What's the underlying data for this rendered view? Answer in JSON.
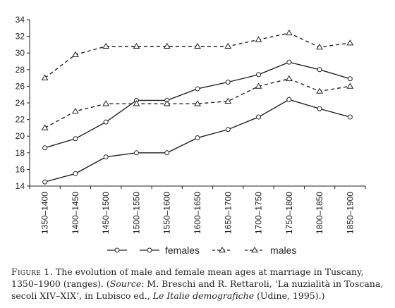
{
  "chart_data": {
    "type": "line",
    "categories": [
      "1350–1400",
      "1400–1450",
      "1450–1500",
      "1500–1550",
      "1550–1600",
      "1600–1650",
      "1650–1700",
      "1700–1750",
      "1750–1800",
      "1800–1850",
      "1850–1900"
    ],
    "ylim": [
      14,
      34
    ],
    "yticks": [
      14,
      16,
      18,
      20,
      22,
      24,
      26,
      28,
      30,
      32,
      34
    ],
    "grid": false,
    "legend_placement": "bottom",
    "series": [
      {
        "group": "females",
        "marker": "circle",
        "line": "solid",
        "values": [
          18.6,
          19.7,
          21.7,
          24.3,
          24.3,
          25.7,
          26.5,
          27.4,
          28.9,
          28.0,
          26.9
        ]
      },
      {
        "group": "females",
        "marker": "circle",
        "line": "solid",
        "values": [
          14.5,
          15.5,
          17.5,
          18.0,
          18.0,
          19.8,
          20.8,
          22.3,
          24.4,
          23.3,
          22.3
        ]
      },
      {
        "group": "males",
        "marker": "triangle",
        "line": "dashed",
        "values": [
          27.0,
          29.8,
          30.8,
          30.8,
          30.8,
          30.8,
          30.8,
          31.6,
          32.4,
          30.7,
          31.2
        ]
      },
      {
        "group": "males",
        "marker": "triangle",
        "line": "dashed",
        "values": [
          21.0,
          23.0,
          23.9,
          23.9,
          23.9,
          23.9,
          24.2,
          26.0,
          26.9,
          25.4,
          26.0
        ]
      }
    ],
    "legend": [
      {
        "label": "",
        "marker": "circle",
        "line": "solid"
      },
      {
        "label": "females",
        "marker": "circle",
        "line": "solid"
      },
      {
        "label": "",
        "marker": "triangle",
        "line": "dashed"
      },
      {
        "label": "males",
        "marker": "triangle",
        "line": "dashed"
      }
    ]
  },
  "caption": {
    "figure_label": "Figure 1.",
    "text_1": " The evolution of male and female mean ages at marriage in Tuscany, 1350–1900 (ranges). (",
    "source_word": "Source",
    "text_2": ": M. Breschi and R. Rettaroli, ‘La nuzialità in Toscana, secoli XIV–XIX’, in Lubisco ed., ",
    "book_title": "Le Italie demografiche",
    "text_3": " (Udine, 1995).)"
  },
  "colors": {
    "line": "#222222",
    "marker_fill": "#ffffff"
  }
}
